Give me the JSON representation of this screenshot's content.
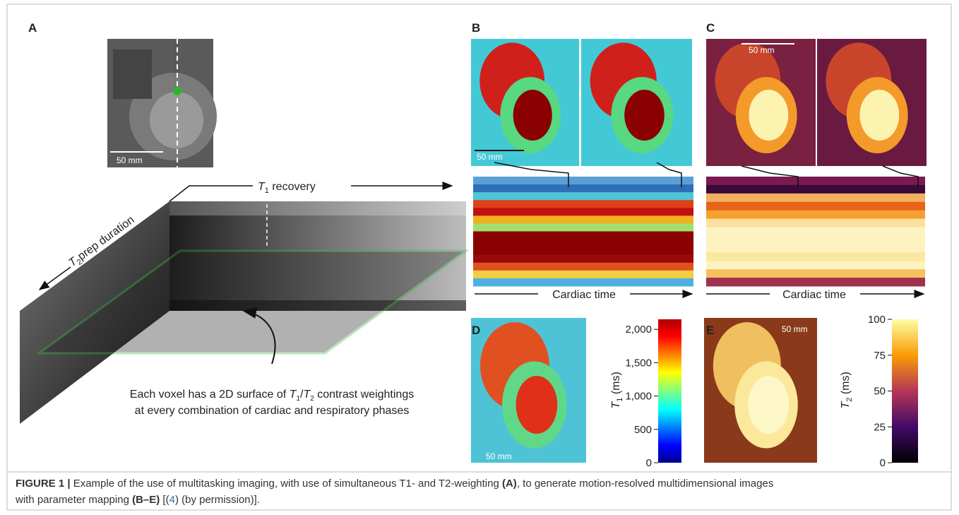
{
  "panels": {
    "a": "A",
    "b": "B",
    "c": "C",
    "d": "D",
    "e": "E"
  },
  "scale_bars": {
    "a": "50 mm",
    "b": "50 mm",
    "c": "50 mm",
    "d": "50 mm",
    "e": "50 mm"
  },
  "axis_labels": {
    "t1_recovery": [
      "T",
      "1",
      " recovery"
    ],
    "t2_prep": [
      "T",
      "2",
      "prep duration"
    ],
    "cardiac_time_b": "Cardiac time",
    "cardiac_time_c": "Cardiac time"
  },
  "annotation": {
    "line1": [
      "Each voxel has a 2D surface of ",
      "T",
      "1",
      "/",
      "T",
      "2",
      " contrast weightings"
    ],
    "line2": "at every combination of cardiac and respiratory phases"
  },
  "colorbars": [
    {
      "label": [
        "T",
        "1",
        " (ms)"
      ],
      "lim": [
        0,
        2150
      ],
      "ticks": [
        {
          "value": 2000,
          "label": "2,000"
        },
        {
          "value": 1500,
          "label": "1,500"
        },
        {
          "value": 1000,
          "label": "1,000"
        },
        500,
        0
      ]
    },
    {
      "label": [
        "T",
        "2",
        " (ms)"
      ],
      "lim": [
        0,
        100
      ],
      "ticks": [
        100,
        75,
        50,
        25,
        0
      ]
    }
  ],
  "caption": {
    "lead": "FIGURE 1 |",
    "text1": " Example of the use of multitasking imaging, with use of simultaneous T1- and T2-weighting ",
    "ref_a": "(A)",
    "text2": ", to generate motion-resolved multidimensional images",
    "text3": "with parameter mapping ",
    "ref_be": "(B–E)",
    "text4": " [(",
    "citation": "4",
    "text5": ") (by permission)]."
  }
}
